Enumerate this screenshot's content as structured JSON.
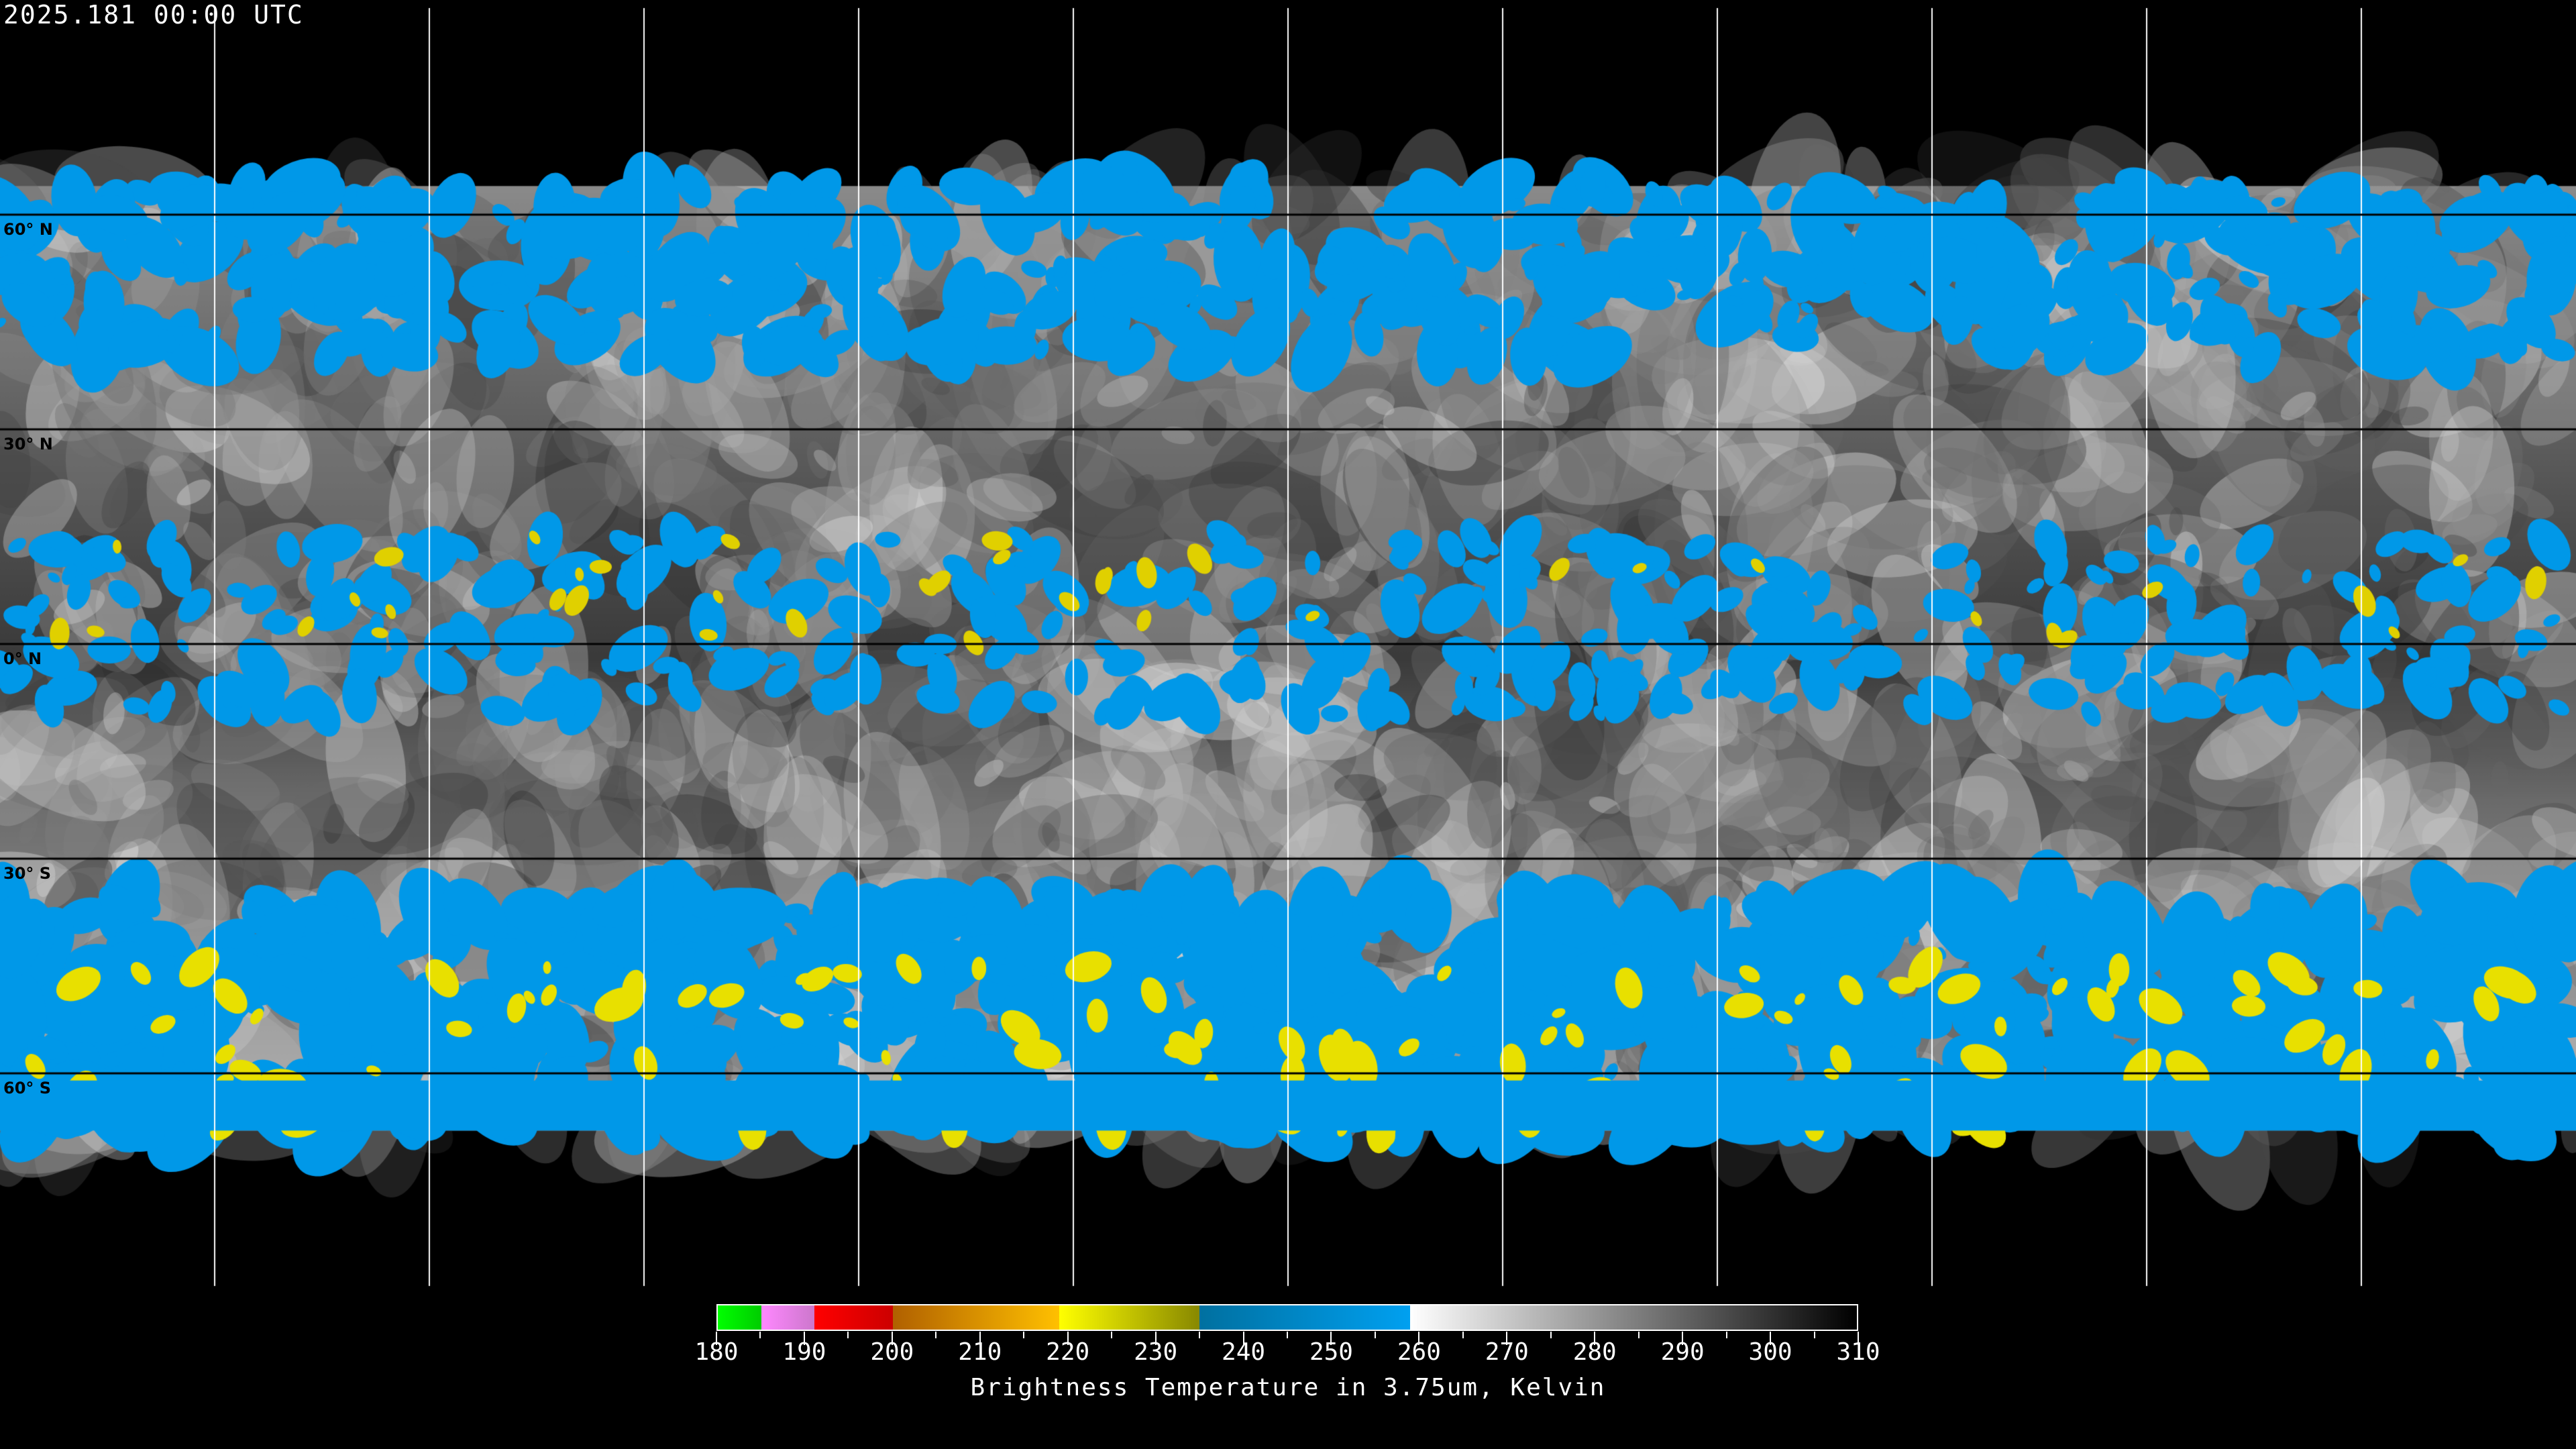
{
  "header": {
    "timestamp": "2025.181 00:00 UTC"
  },
  "map": {
    "projection": "equirectangular",
    "grid_spacing_deg": 30,
    "lat_labels": [
      "60° N",
      "30° N",
      "0° N",
      "30° S",
      "60° S"
    ],
    "lat_values": [
      60,
      30,
      0,
      -30,
      -60
    ],
    "coastline_color": "#ffffff",
    "grid_color": "#ffffff"
  },
  "colorbar": {
    "title": "Brightness Temperature in 3.75um, Kelvin",
    "min": 180,
    "max": 310,
    "tick_labels": [
      "180",
      "190",
      "200",
      "210",
      "220",
      "230",
      "240",
      "250",
      "260",
      "270",
      "280",
      "290",
      "300",
      "310"
    ],
    "segments": [
      {
        "from": 180,
        "to": 185,
        "colors": [
          "#00ff00",
          "#00cc00"
        ]
      },
      {
        "from": 185,
        "to": 191,
        "colors": [
          "#ff88ff",
          "#cc77cc"
        ]
      },
      {
        "from": 191,
        "to": 200,
        "colors": [
          "#ff0000",
          "#cc0000"
        ]
      },
      {
        "from": 200,
        "to": 219,
        "colors": [
          "#b06000",
          "#ffc000"
        ]
      },
      {
        "from": 219,
        "to": 235,
        "colors": [
          "#ffff00",
          "#888800"
        ]
      },
      {
        "from": 235,
        "to": 259,
        "colors": [
          "#0070a0",
          "#00a0f0"
        ]
      },
      {
        "from": 259,
        "to": 310,
        "colors": [
          "#ffffff",
          "#000000"
        ]
      }
    ]
  }
}
